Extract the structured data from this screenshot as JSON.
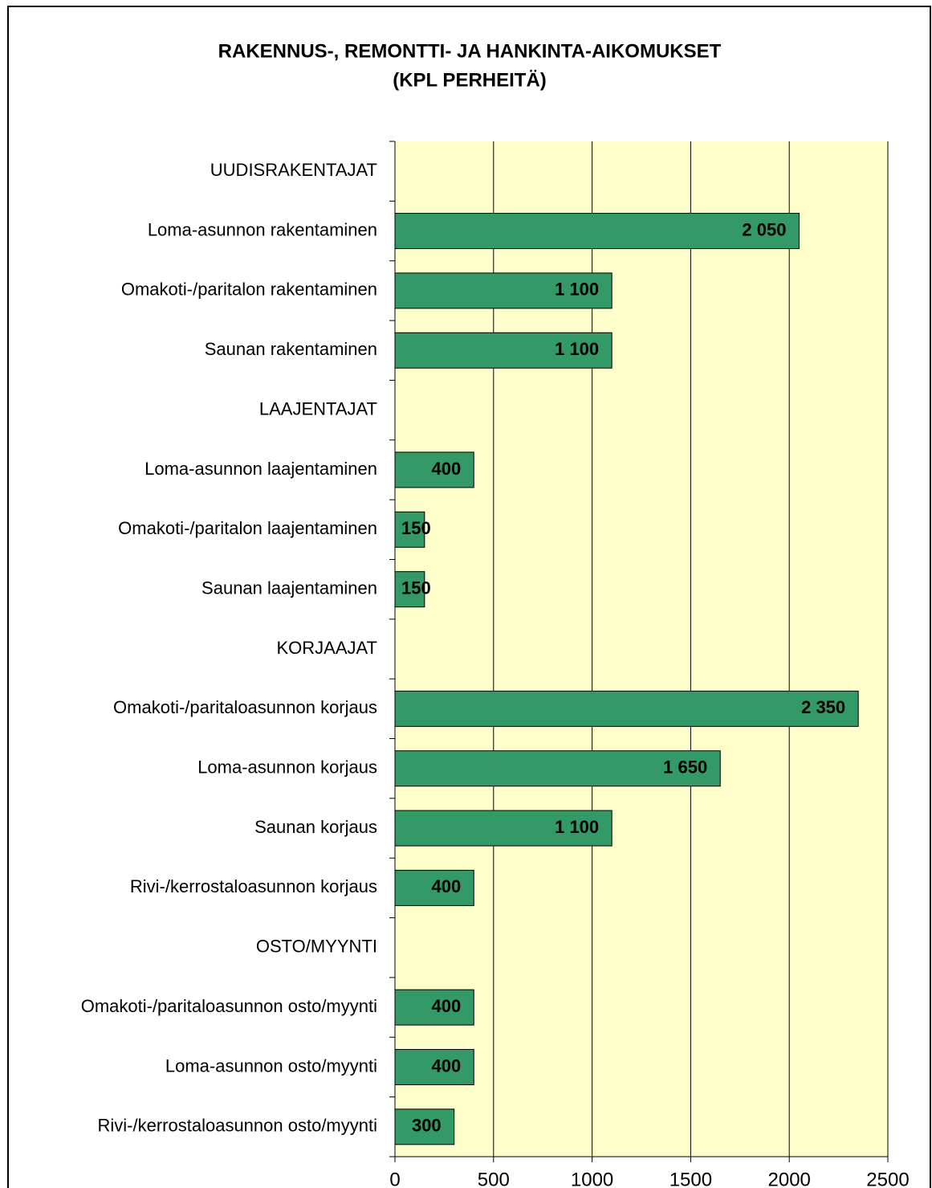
{
  "chart_data": {
    "type": "barh",
    "title": [
      "RAKENNUS-, REMONTTI- JA HANKINTA-AIKOMUKSET",
      "(KPL PERHEITÄ)"
    ],
    "categories": [
      "UUDISRAKENTAJAT",
      "Loma-asunnon rakentaminen",
      "Omakoti-/paritalon rakentaminen",
      "Saunan rakentaminen",
      "LAAJENTAJAT",
      "Loma-asunnon laajentaminen",
      "Omakoti-/paritalon laajentaminen",
      "Saunan laajentaminen",
      "KORJAAJAT",
      "Omakoti-/paritaloasunnon korjaus",
      "Loma-asunnon korjaus",
      "Saunan korjaus",
      "Rivi-/kerrostaloasunnon korjaus",
      "OSTO/MYYNTI",
      "Omakoti-/paritaloasunnon osto/myynti",
      "Loma-asunnon osto/myynti",
      "Rivi-/kerrostaloasunnon osto/myynti"
    ],
    "values": [
      null,
      2050,
      1100,
      1100,
      null,
      400,
      150,
      150,
      null,
      2350,
      1650,
      1100,
      400,
      null,
      400,
      400,
      300
    ],
    "value_labels": [
      null,
      "2 050",
      "1 100",
      "1 100",
      null,
      "400",
      "150",
      "150",
      null,
      "2 350",
      "1 650",
      "1 100",
      "400",
      null,
      "400",
      "400",
      "300"
    ],
    "color": "#339966",
    "xlim": [
      0,
      2500
    ],
    "xticks": [
      0,
      500,
      1000,
      1500,
      2000,
      2500
    ],
    "grid": true
  }
}
